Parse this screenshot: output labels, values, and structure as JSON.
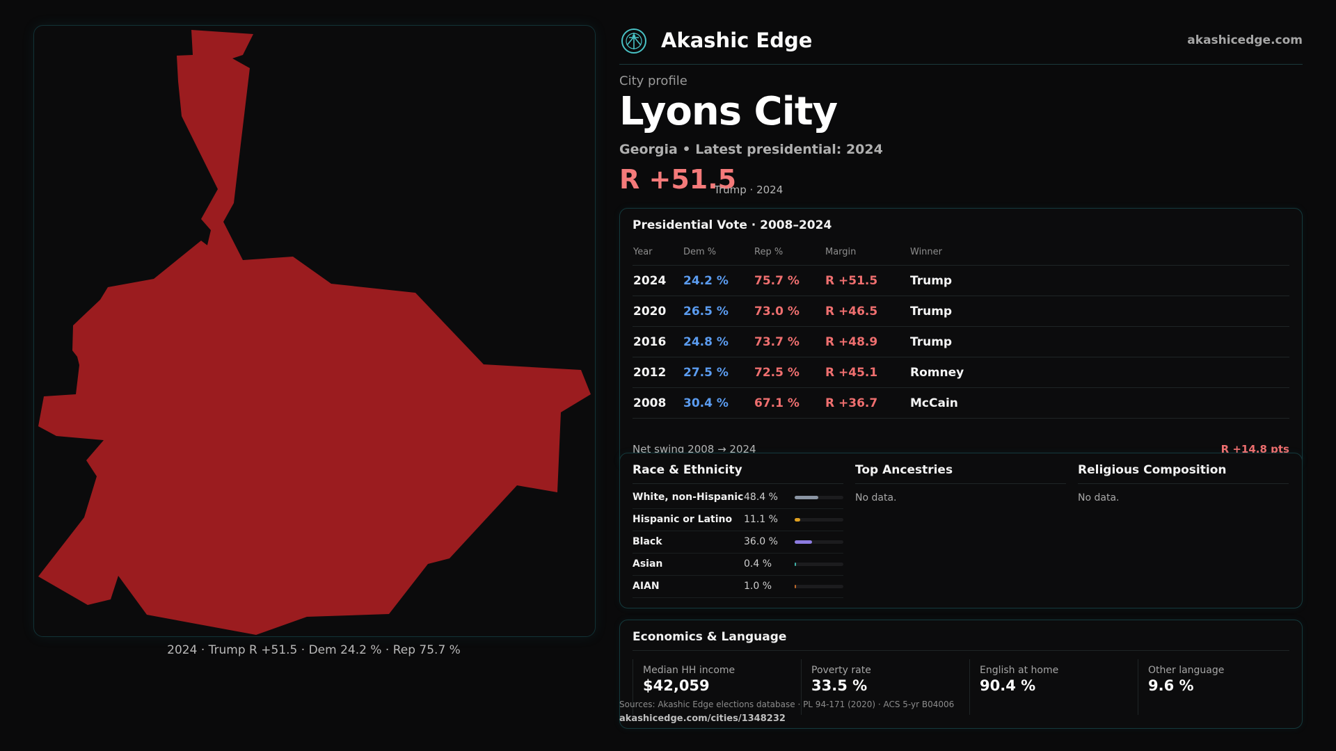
{
  "map": {
    "caption": "2024 · Trump R +51.5 · Dem 24.2 % · Rep 75.7 %",
    "fill_color": "#9b1c1f"
  },
  "brand": {
    "name": "Akashic Edge",
    "url": "akashicedge.com",
    "logo_icon": "akashic-logo-icon"
  },
  "profile": {
    "eyebrow": "City profile",
    "city": "Lyons City",
    "subtitle": "Georgia • Latest presidential: 2024",
    "margin": "R +51.5",
    "margin_detail": "Trump · 2024"
  },
  "presidential": {
    "title": "Presidential Vote · 2008–2024",
    "headers": [
      "Year",
      "Dem %",
      "Rep %",
      "Margin",
      "Winner"
    ],
    "rows": [
      {
        "year": "2024",
        "dem": "24.2 %",
        "rep": "75.7 %",
        "margin": "R +51.5",
        "winner": "Trump"
      },
      {
        "year": "2020",
        "dem": "26.5 %",
        "rep": "73.0 %",
        "margin": "R +46.5",
        "winner": "Trump"
      },
      {
        "year": "2016",
        "dem": "24.8 %",
        "rep": "73.7 %",
        "margin": "R +48.9",
        "winner": "Trump"
      },
      {
        "year": "2012",
        "dem": "27.5 %",
        "rep": "72.5 %",
        "margin": "R +45.1",
        "winner": "Romney"
      },
      {
        "year": "2008",
        "dem": "30.4 %",
        "rep": "67.1 %",
        "margin": "R +36.7",
        "winner": "McCain"
      }
    ],
    "swing_label": "Net swing 2008 → 2024",
    "swing_value": "R +14.8 pts"
  },
  "demographics": {
    "race_title": "Race & Ethnicity",
    "race": [
      {
        "name": "White, non-Hispanic",
        "pct": "48.4 %",
        "fraction": 0.484,
        "color": "#8b95a3"
      },
      {
        "name": "Hispanic or Latino",
        "pct": "11.1 %",
        "fraction": 0.111,
        "color": "#e0a020"
      },
      {
        "name": "Black",
        "pct": "36.0 %",
        "fraction": 0.36,
        "color": "#8c7be0"
      },
      {
        "name": "Asian",
        "pct": "0.4 %",
        "fraction": 0.004,
        "color": "#3fb3a8"
      },
      {
        "name": "AIAN",
        "pct": "1.0 %",
        "fraction": 0.01,
        "color": "#c06a2a"
      }
    ],
    "ancestry_title": "Top Ancestries",
    "ancestry_nodata": "No data.",
    "religion_title": "Religious Composition",
    "religion_nodata": "No data."
  },
  "economics": {
    "title": "Economics & Language",
    "items": [
      {
        "label": "Median HH income",
        "value": "$42,059"
      },
      {
        "label": "Poverty rate",
        "value": "33.5 %"
      },
      {
        "label": "English at home",
        "value": "90.4 %"
      },
      {
        "label": "Other language",
        "value": "9.6 %"
      }
    ]
  },
  "footer": {
    "sources": "Sources: Akashic Edge elections database · PL 94-171 (2020) · ACS 5-yr B04006",
    "url": "akashicedge.com/cities/1348232"
  }
}
